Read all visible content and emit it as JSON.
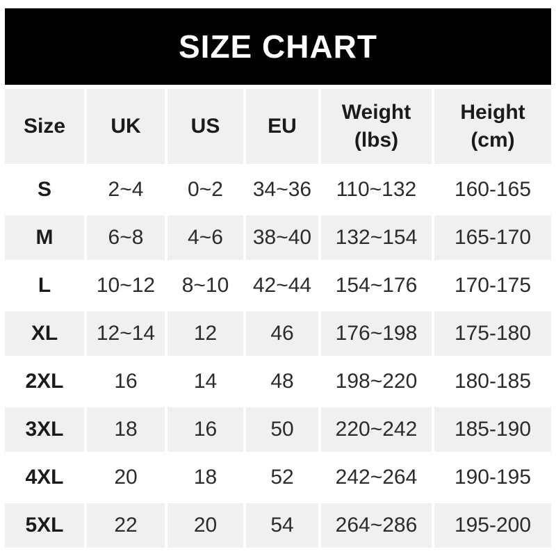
{
  "title": "SIZE CHART",
  "colors": {
    "banner_bg": "#000000",
    "banner_text": "#ffffff",
    "row_shade": "#f0f0f0",
    "page_bg": "#ffffff",
    "text": "#2b2b2b",
    "text_bold": "#1b1b1d"
  },
  "table": {
    "columns": [
      {
        "key": "size",
        "label": "Size"
      },
      {
        "key": "uk",
        "label": "UK"
      },
      {
        "key": "us",
        "label": "US"
      },
      {
        "key": "eu",
        "label": "EU"
      },
      {
        "key": "weight",
        "label": "Weight\n(lbs)"
      },
      {
        "key": "height",
        "label": "Height\n(cm)"
      }
    ],
    "rows": [
      {
        "size": "S",
        "uk": "2~4",
        "us": "0~2",
        "eu": "34~36",
        "weight": "110~132",
        "height": "160-165"
      },
      {
        "size": "M",
        "uk": "6~8",
        "us": "4~6",
        "eu": "38~40",
        "weight": "132~154",
        "height": "165-170"
      },
      {
        "size": "L",
        "uk": "10~12",
        "us": "8~10",
        "eu": "42~44",
        "weight": "154~176",
        "height": "170-175"
      },
      {
        "size": "XL",
        "uk": "12~14",
        "us": "12",
        "eu": "46",
        "weight": "176~198",
        "height": "175-180"
      },
      {
        "size": "2XL",
        "uk": "16",
        "us": "14",
        "eu": "48",
        "weight": "198~220",
        "height": "180-185"
      },
      {
        "size": "3XL",
        "uk": "18",
        "us": "16",
        "eu": "50",
        "weight": "220~242",
        "height": "185-190"
      },
      {
        "size": "4XL",
        "uk": "20",
        "us": "18",
        "eu": "52",
        "weight": "242~264",
        "height": "190-195"
      },
      {
        "size": "5XL",
        "uk": "22",
        "us": "20",
        "eu": "54",
        "weight": "264~286",
        "height": "195-200"
      }
    ]
  },
  "chart_data": {
    "type": "table",
    "title": "SIZE CHART",
    "columns": [
      "Size",
      "UK",
      "US",
      "EU",
      "Weight (lbs)",
      "Height (cm)"
    ],
    "rows": [
      [
        "S",
        "2~4",
        "0~2",
        "34~36",
        "110~132",
        "160-165"
      ],
      [
        "M",
        "6~8",
        "4~6",
        "38~40",
        "132~154",
        "165-170"
      ],
      [
        "L",
        "10~12",
        "8~10",
        "42~44",
        "154~176",
        "170-175"
      ],
      [
        "XL",
        "12~14",
        "12",
        "46",
        "176~198",
        "175-180"
      ],
      [
        "2XL",
        "16",
        "14",
        "48",
        "198~220",
        "180-185"
      ],
      [
        "3XL",
        "18",
        "16",
        "50",
        "220~242",
        "185-190"
      ],
      [
        "4XL",
        "20",
        "18",
        "52",
        "242~264",
        "190-195"
      ],
      [
        "5XL",
        "22",
        "20",
        "54",
        "264~286",
        "195-200"
      ]
    ],
    "layout": {
      "header_background": "#f0f0f0",
      "row_alternation": [
        "#ffffff",
        "#f0f0f0"
      ],
      "weight_range_separator": "~",
      "height_range_separator": "-"
    }
  }
}
